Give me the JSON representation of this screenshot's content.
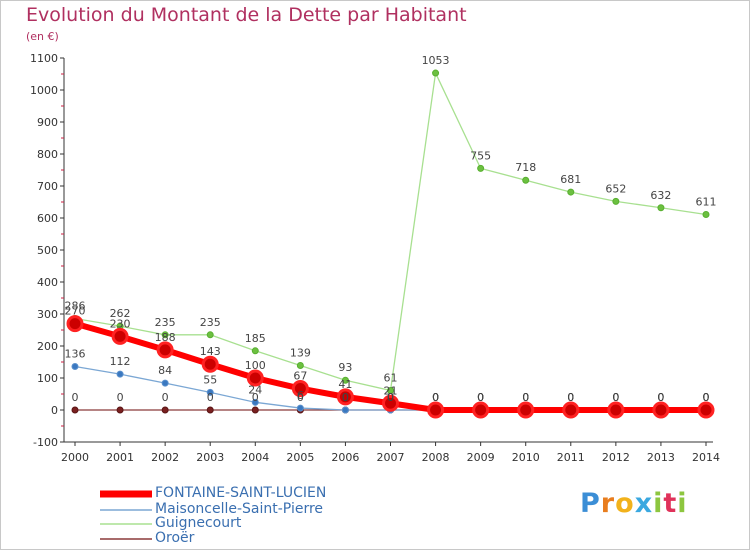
{
  "header": {
    "title": "Evolution du Montant de la Dette par Habitant",
    "subtitle": "(en €)"
  },
  "logo": {
    "text": "Proxiti"
  },
  "colors": {
    "title": "#b03060",
    "axis": "#333333",
    "tick_accent": "#cc2244",
    "logo_p": "#3b8ed6",
    "logo_r": "#e87d1e",
    "logo_o": "#f2b21b",
    "logo_x": "#3aa8e0",
    "logo_i": "#8dc63f",
    "logo_t": "#e0325a"
  },
  "chart_data": {
    "type": "line",
    "title": "Evolution du Montant de la Dette par Habitant",
    "subtitle": "(en €)",
    "xlabel": "",
    "ylabel": "",
    "x": [
      "2000",
      "2001",
      "2002",
      "2003",
      "2004",
      "2005",
      "2006",
      "2007",
      "2008",
      "2009",
      "2010",
      "2011",
      "2012",
      "2013",
      "2014"
    ],
    "ylim": [
      -100,
      1100
    ],
    "yticks": [
      -100,
      0,
      100,
      200,
      300,
      400,
      500,
      600,
      700,
      800,
      900,
      1000,
      1100
    ],
    "grid": false,
    "legend_position": "bottom-left",
    "series": [
      {
        "name": "FONTAINE-SAINT-LUCIEN",
        "color": "#ff0000",
        "marker_color": "#cc0000",
        "values": [
          270,
          230,
          188,
          143,
          100,
          67,
          41,
          21,
          0,
          0,
          0,
          0,
          0,
          0,
          0
        ],
        "labels": [
          "270",
          "230",
          "188",
          "143",
          "100",
          "67",
          "41",
          "21",
          "0",
          "0",
          "0",
          "0",
          "0",
          "0",
          "0"
        ]
      },
      {
        "name": "Maisoncelle-Saint-Pierre",
        "color": "#7ba7d4",
        "marker_color": "#3a78c0",
        "values": [
          136,
          112,
          84,
          55,
          24,
          6,
          0,
          0,
          0,
          0,
          0,
          0,
          0,
          0,
          0
        ],
        "labels": [
          "136",
          "112",
          "84",
          "55",
          "24",
          "6",
          "0",
          "0",
          "0",
          "0",
          "0",
          "0",
          "0",
          "0",
          "0"
        ]
      },
      {
        "name": "Guignecourt",
        "color": "#a8e090",
        "marker_color": "#6cc040",
        "values": [
          286,
          262,
          235,
          235,
          185,
          139,
          93,
          61,
          1053,
          755,
          718,
          681,
          652,
          632,
          611
        ],
        "labels": [
          "286",
          "262",
          "235",
          "235",
          "185",
          "139",
          "93",
          "61",
          "1053",
          "755",
          "718",
          "681",
          "652",
          "632",
          "611"
        ]
      },
      {
        "name": "Oroër",
        "color": "#8b3a3a",
        "marker_color": "#7a2020",
        "values": [
          0,
          0,
          0,
          0,
          0,
          0,
          0,
          0,
          0,
          0,
          0,
          0,
          0,
          0,
          0
        ],
        "labels": [
          "0",
          "0",
          "0",
          "0",
          "0",
          "0",
          "0",
          "0",
          "0",
          "0",
          "0",
          "0",
          "0",
          "0",
          "0"
        ]
      }
    ]
  }
}
